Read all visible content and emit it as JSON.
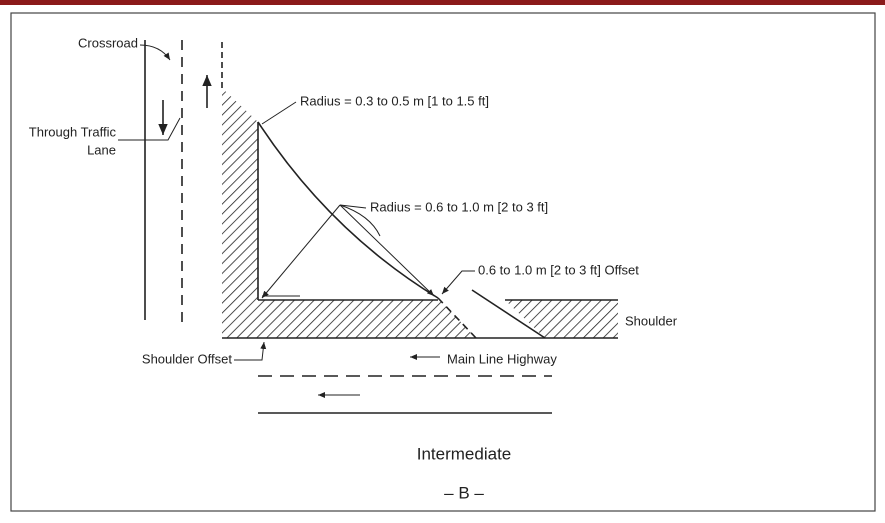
{
  "labels": {
    "crossroad": "Crossroad",
    "through_traffic": [
      "Through Traffic",
      "Lane"
    ],
    "radius_small": "Radius = 0.3 to 0.5 m [1 to 1.5 ft]",
    "radius_large": "Radius = 0.6 to 1.0 m [2 to 3 ft]",
    "offset": "0.6 to 1.0 m [2 to 3 ft] Offset",
    "shoulder": "Shoulder",
    "shoulder_offset": "Shoulder Offset",
    "main_line": "Main Line Highway",
    "caption": "Intermediate",
    "sublabel": "– B –"
  }
}
